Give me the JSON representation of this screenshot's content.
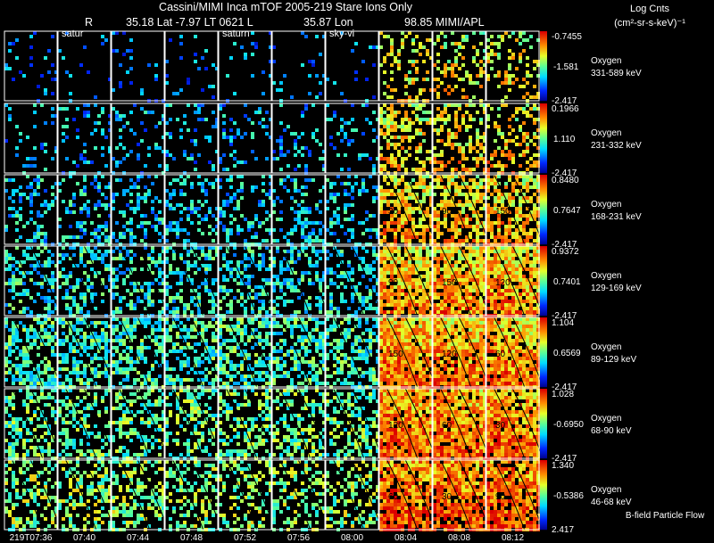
{
  "chart_data": {
    "type": "heatmap",
    "title": "Cassini/MIMI Inca mTOF  2005-219   Stare   Ions Only",
    "subtitle": {
      "r_label": "R",
      "geometry": "35.18 Lat -7.97 LT 0621 L",
      "lon": "35.87 Lon",
      "other": "98.85  MIMI/APL"
    },
    "units_label": "Log Cnts",
    "units_sub": "(cm²-sr-s-keV)⁻¹",
    "target_labels": [
      {
        "col": 1,
        "text": "satur"
      },
      {
        "col": 4,
        "text": "saturn"
      },
      {
        "col": 6,
        "text": "sky-vi"
      }
    ],
    "time_labels": [
      "219T07:36",
      "07:40",
      "07:44",
      "07:48",
      "07:52",
      "07:56",
      "08:00",
      "08:04",
      "08:08",
      "08:12"
    ],
    "rows": [
      {
        "species": "Oxygen",
        "energy": "331-589 keV",
        "cmax": "-0.7455",
        "cmid": "-1.581",
        "cmin": "-2.417",
        "density": 0.07
      },
      {
        "species": "Oxygen",
        "energy": "231-332 keV",
        "cmax": "0.1966",
        "cmid": "1.110",
        "cmin": "-2.417",
        "density": 0.16
      },
      {
        "species": "Oxygen",
        "energy": "168-231 keV",
        "cmax": "0.8480",
        "cmid": "0.7647",
        "cmin": "-2.417",
        "density": 0.3
      },
      {
        "species": "Oxygen",
        "energy": "129-169 keV",
        "cmax": "0.9372",
        "cmid": "0.7401",
        "cmin": "-2.417",
        "density": 0.42
      },
      {
        "species": "Oxygen",
        "energy": "89-129 keV",
        "cmax": "1.104",
        "cmid": "0.6569",
        "cmin": "-2.417",
        "density": 0.55
      },
      {
        "species": "Oxygen",
        "energy": "68-90 keV",
        "cmax": "1.028",
        "cmid": "-0.6950",
        "cmin": "-2.417",
        "density": 0.45
      },
      {
        "species": "Oxygen",
        "energy": "46-68 keV",
        "cmax": "1.340",
        "cmid": "-0.5386",
        "cmin": "2.417",
        "density": 0.4
      }
    ],
    "contour_labels": [
      "90",
      "150",
      "120",
      "60",
      "30"
    ],
    "footer_note": "B-field Particle Flow"
  }
}
